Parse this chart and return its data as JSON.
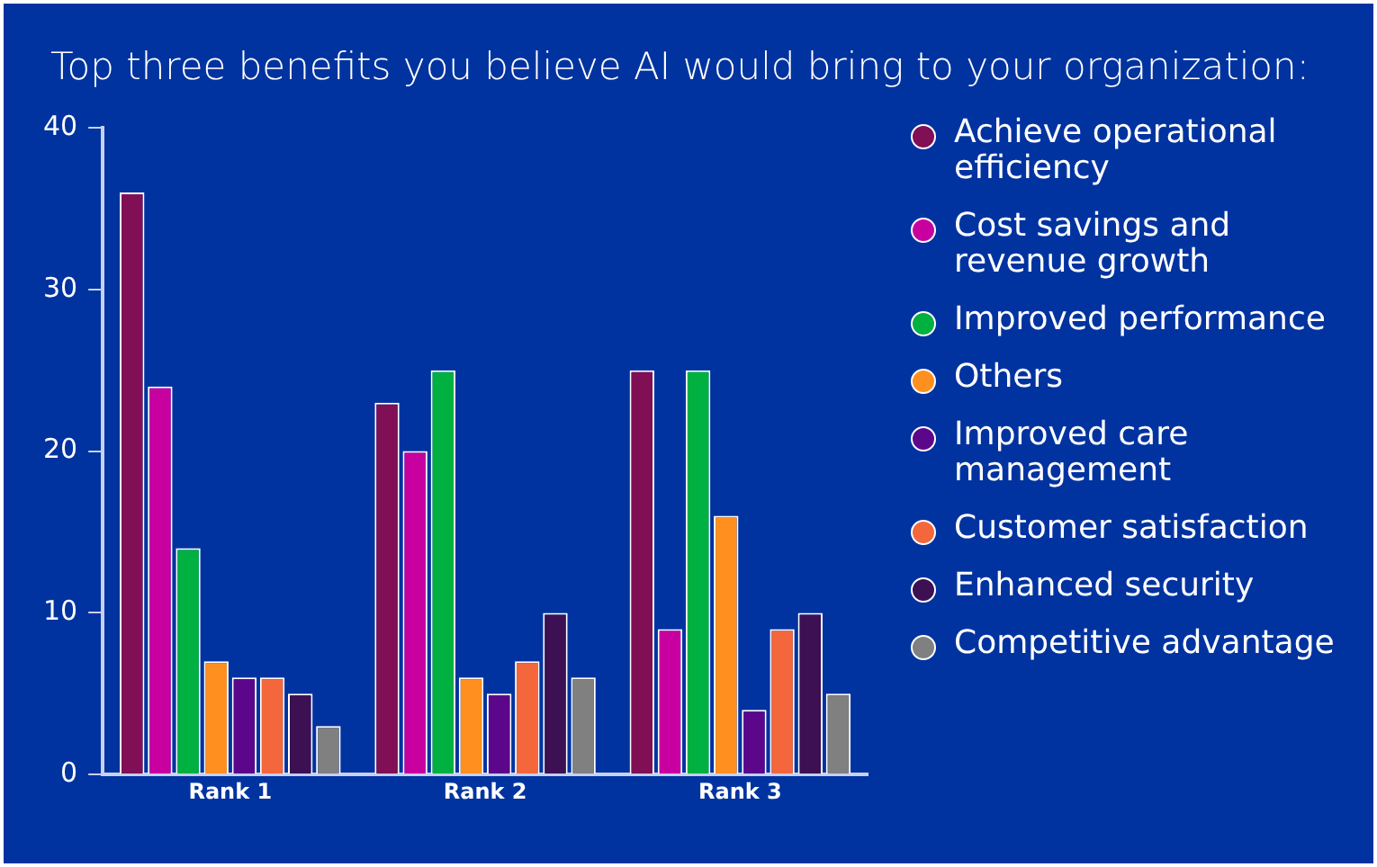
{
  "chart_data": {
    "type": "bar",
    "title": "Top three benefits you believe AI would bring to your organization:",
    "categories": [
      "Rank 1",
      "Rank 2",
      "Rank 3"
    ],
    "series": [
      {
        "name": "Achieve operational efficiency",
        "color": "#800f55",
        "values": [
          36,
          23,
          25
        ]
      },
      {
        "name": "Cost savings and revenue growth",
        "color": "#c800a0",
        "values": [
          24,
          20,
          9
        ]
      },
      {
        "name": "Improved performance",
        "color": "#00b040",
        "values": [
          14,
          25,
          25
        ]
      },
      {
        "name": "Others",
        "color": "#ff9020",
        "values": [
          7,
          6,
          16
        ]
      },
      {
        "name": "Improved care management",
        "color": "#5c068c",
        "values": [
          6,
          5,
          4
        ]
      },
      {
        "name": "Customer satisfaction",
        "color": "#f4673c",
        "values": [
          6,
          7,
          9
        ]
      },
      {
        "name": "Enhanced security",
        "color": "#3c1053",
        "values": [
          5,
          10,
          10
        ]
      },
      {
        "name": "Competitive advantage",
        "color": "#808080",
        "values": [
          3,
          6,
          5
        ]
      }
    ],
    "ylim": [
      0,
      40
    ],
    "yticks": [
      0,
      10,
      20,
      30,
      40
    ],
    "grid": false,
    "legend": "right",
    "marker": "circle"
  }
}
